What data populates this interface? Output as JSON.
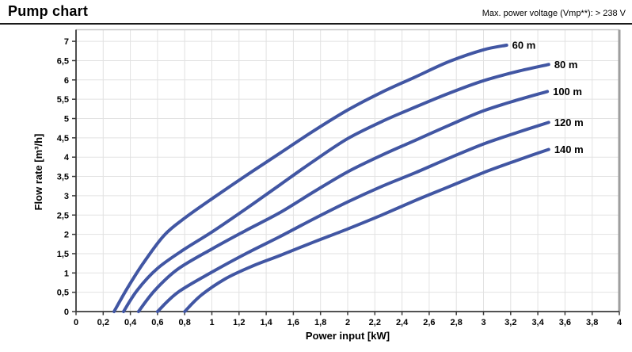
{
  "header": {
    "title": "Pump chart",
    "note": "Max. power voltage (Vmp**): > 238 V"
  },
  "chart_data": {
    "type": "line",
    "title": "Pump chart",
    "xlabel": "Power input [kW]",
    "ylabel": "Flow rate [m³/h]",
    "xlim": [
      0,
      4
    ],
    "ylim": [
      0,
      7.3
    ],
    "x_tick_step": 0.2,
    "y_tick_step": 0.5,
    "x_tick_labels": [
      "0",
      "0,2",
      "0,4",
      "0,6",
      "0,8",
      "1",
      "1,2",
      "1,4",
      "1,6",
      "1,8",
      "2",
      "2,2",
      "2,4",
      "2,6",
      "2,8",
      "3",
      "3,2",
      "3,4",
      "3,6",
      "3,8",
      "4"
    ],
    "y_tick_labels": [
      "0",
      "0,5",
      "1",
      "1,5",
      "2",
      "2,5",
      "3",
      "3,5",
      "4",
      "4,5",
      "5",
      "5,5",
      "6",
      "6,5",
      "7"
    ],
    "grid": true,
    "legend_position": "end-of-line-labels",
    "line_color": "#4156A3",
    "grid_color": "#E2E2E2",
    "axis_color": "#3a3a3a",
    "top_border_color": "#c8c8c8",
    "right_border_color": "#9e9e9e",
    "series": [
      {
        "name": "60 m",
        "points": [
          [
            0.28,
            0
          ],
          [
            0.38,
            0.62
          ],
          [
            0.5,
            1.28
          ],
          [
            0.65,
            1.98
          ],
          [
            0.8,
            2.42
          ],
          [
            1.0,
            2.92
          ],
          [
            1.25,
            3.52
          ],
          [
            1.5,
            4.1
          ],
          [
            1.75,
            4.68
          ],
          [
            2.0,
            5.22
          ],
          [
            2.25,
            5.68
          ],
          [
            2.5,
            6.08
          ],
          [
            2.75,
            6.48
          ],
          [
            3.0,
            6.78
          ],
          [
            3.17,
            6.9
          ]
        ]
      },
      {
        "name": "80 m",
        "points": [
          [
            0.35,
            0
          ],
          [
            0.45,
            0.55
          ],
          [
            0.6,
            1.12
          ],
          [
            0.8,
            1.62
          ],
          [
            1.0,
            2.06
          ],
          [
            1.25,
            2.66
          ],
          [
            1.5,
            3.28
          ],
          [
            1.75,
            3.9
          ],
          [
            2.0,
            4.48
          ],
          [
            2.25,
            4.92
          ],
          [
            2.5,
            5.3
          ],
          [
            2.75,
            5.66
          ],
          [
            3.0,
            5.98
          ],
          [
            3.25,
            6.22
          ],
          [
            3.48,
            6.4
          ]
        ]
      },
      {
        "name": "100 m",
        "points": [
          [
            0.46,
            0
          ],
          [
            0.58,
            0.55
          ],
          [
            0.75,
            1.1
          ],
          [
            1.0,
            1.62
          ],
          [
            1.25,
            2.1
          ],
          [
            1.5,
            2.56
          ],
          [
            1.75,
            3.1
          ],
          [
            2.0,
            3.62
          ],
          [
            2.25,
            4.05
          ],
          [
            2.5,
            4.44
          ],
          [
            2.75,
            4.83
          ],
          [
            3.0,
            5.2
          ],
          [
            3.25,
            5.48
          ],
          [
            3.47,
            5.7
          ]
        ]
      },
      {
        "name": "120 m",
        "points": [
          [
            0.6,
            0
          ],
          [
            0.75,
            0.5
          ],
          [
            1.0,
            1.02
          ],
          [
            1.25,
            1.5
          ],
          [
            1.5,
            1.94
          ],
          [
            1.75,
            2.4
          ],
          [
            2.0,
            2.84
          ],
          [
            2.25,
            3.24
          ],
          [
            2.5,
            3.6
          ],
          [
            2.75,
            3.98
          ],
          [
            3.0,
            4.34
          ],
          [
            3.25,
            4.64
          ],
          [
            3.48,
            4.9
          ]
        ]
      },
      {
        "name": "140 m",
        "points": [
          [
            0.8,
            0
          ],
          [
            0.92,
            0.42
          ],
          [
            1.1,
            0.85
          ],
          [
            1.3,
            1.18
          ],
          [
            1.5,
            1.45
          ],
          [
            1.75,
            1.8
          ],
          [
            2.0,
            2.14
          ],
          [
            2.25,
            2.5
          ],
          [
            2.5,
            2.88
          ],
          [
            2.75,
            3.24
          ],
          [
            3.0,
            3.6
          ],
          [
            3.25,
            3.92
          ],
          [
            3.48,
            4.2
          ]
        ]
      }
    ]
  }
}
